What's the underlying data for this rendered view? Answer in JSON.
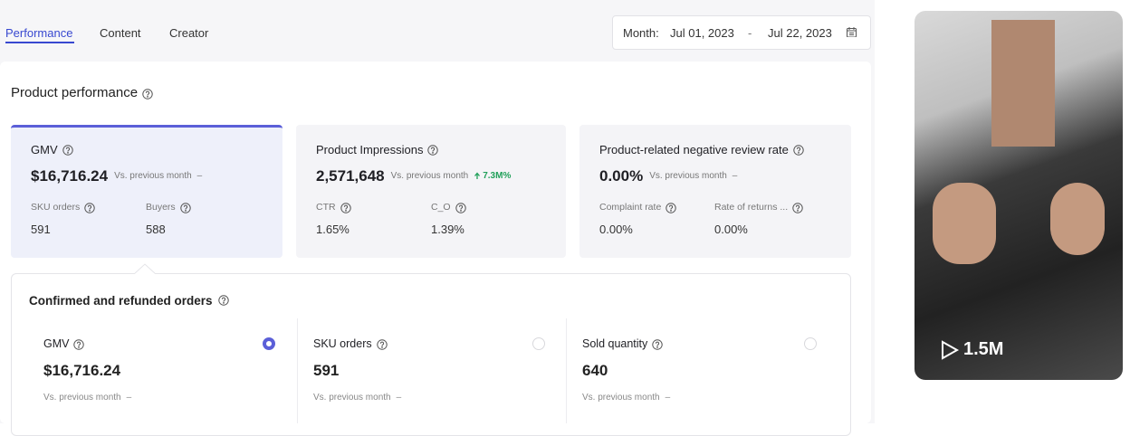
{
  "tabs": [
    "Performance",
    "Content",
    "Creator"
  ],
  "date_range": {
    "label": "Month:",
    "start": "Jul 01, 2023",
    "separator": "-",
    "end": "Jul 22, 2023"
  },
  "section_title": "Product performance",
  "cards": [
    {
      "title": "GMV",
      "value": "$16,716.24",
      "comparison": "Vs. previous month",
      "change": "–",
      "metrics": [
        {
          "label": "SKU orders",
          "value": "591"
        },
        {
          "label": "Buyers",
          "value": "588"
        }
      ]
    },
    {
      "title": "Product Impressions",
      "value": "2,571,648",
      "comparison": "Vs. previous month",
      "change": "7.3M%",
      "metrics": [
        {
          "label": "CTR",
          "value": "1.65%"
        },
        {
          "label": "C_O",
          "value": "1.39%"
        }
      ]
    },
    {
      "title": "Product-related negative review rate",
      "value": "0.00%",
      "comparison": "Vs. previous month",
      "change": "–",
      "metrics": [
        {
          "label": "Complaint rate",
          "value": "0.00%"
        },
        {
          "label": "Rate of returns ...",
          "value": "0.00%"
        }
      ]
    }
  ],
  "orders": {
    "title": "Confirmed and refunded orders",
    "items": [
      {
        "label": "GMV",
        "value": "$16,716.24",
        "comparison": "Vs. previous month",
        "change": "–"
      },
      {
        "label": "SKU orders",
        "value": "591",
        "comparison": "Vs. previous month",
        "change": "–"
      },
      {
        "label": "Sold quantity",
        "value": "640",
        "comparison": "Vs. previous month",
        "change": "–"
      }
    ]
  },
  "video": {
    "views": "1.5M"
  }
}
